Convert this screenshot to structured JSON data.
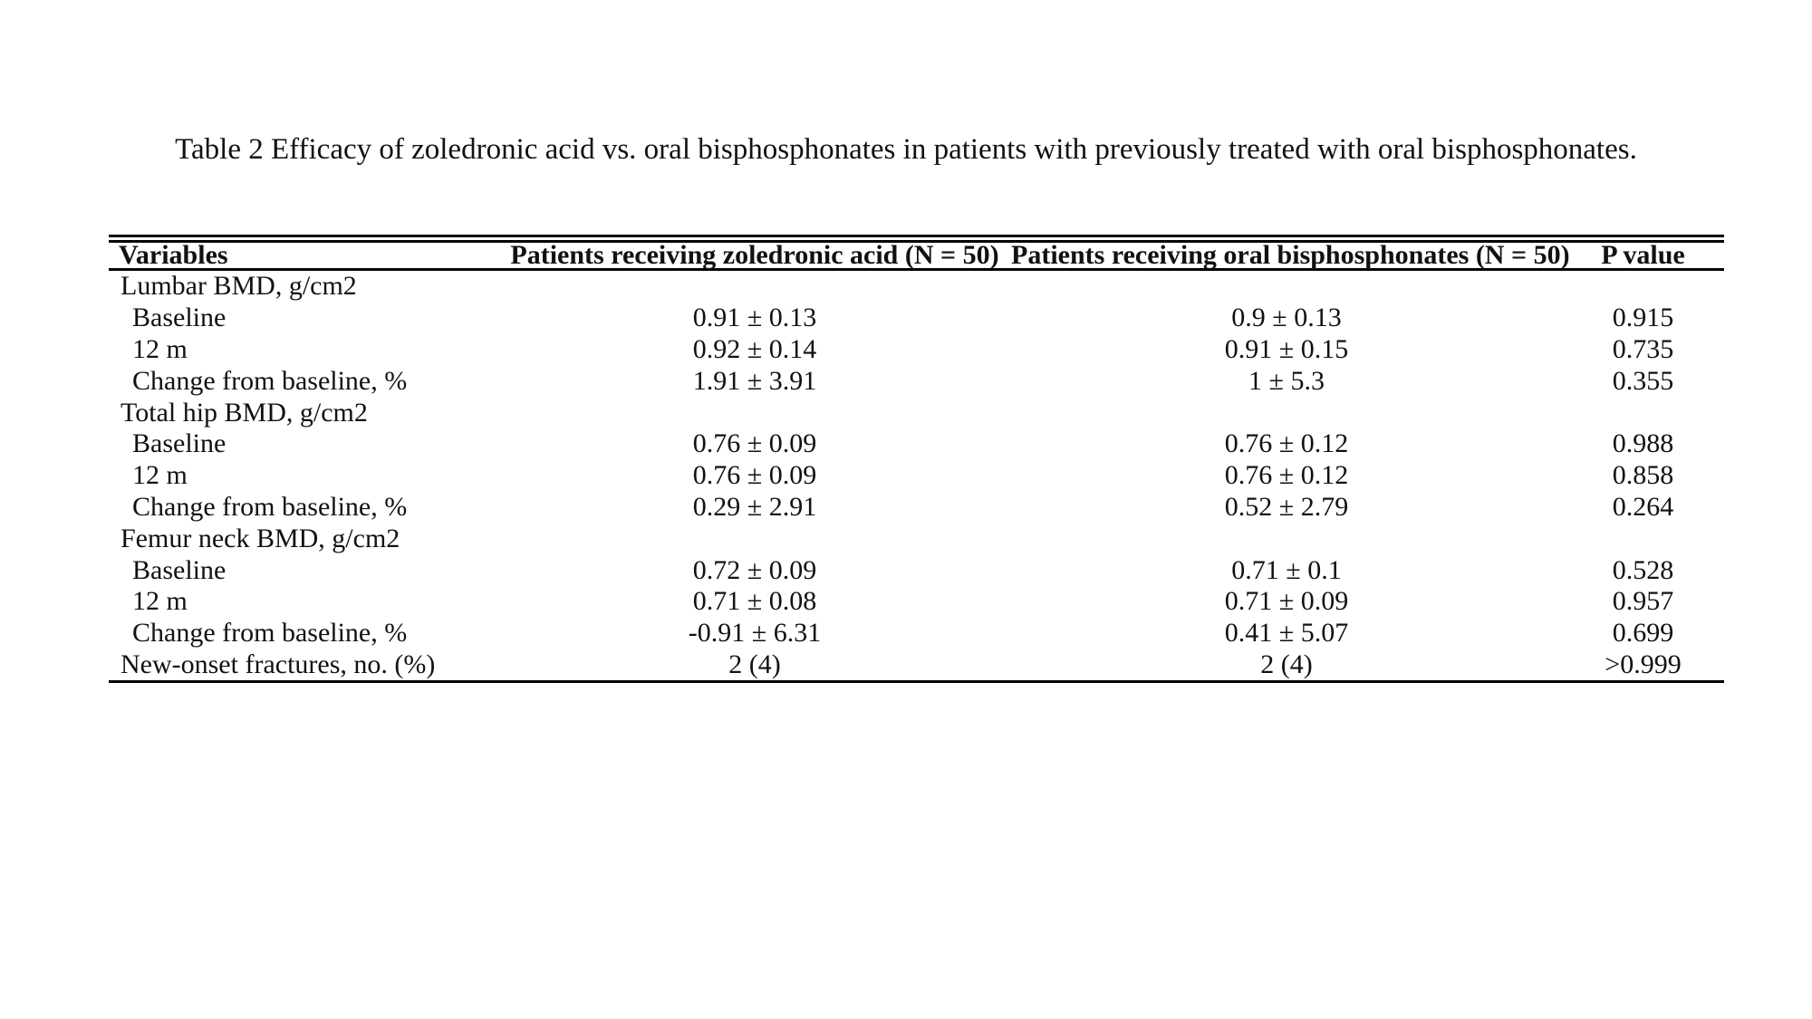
{
  "page": {
    "background": "#ffffff",
    "text_color": "#111111",
    "rule_color": "#000000"
  },
  "title": "Table 2 Efficacy of zoledronic acid vs. oral bisphosphonates in patients with previously treated with oral bisphosphonates.",
  "table": {
    "columns": [
      "Variables",
      "Patients receiving zoledronic acid (N = 50)",
      "Patients receiving oral bisphosphonates (N = 50)",
      "P value"
    ],
    "rows": [
      {
        "label": "Lumbar BMD, g/cm2",
        "indent": 0,
        "zoledronic": "",
        "oral": "",
        "p": ""
      },
      {
        "label": "Baseline",
        "indent": 1,
        "zoledronic": "0.91 ± 0.13",
        "oral": "0.9 ± 0.13",
        "p": "0.915"
      },
      {
        "label": "12 m",
        "indent": 1,
        "zoledronic": "0.92 ± 0.14",
        "oral": "0.91 ± 0.15",
        "p": "0.735"
      },
      {
        "label": "Change from baseline, %",
        "indent": 1,
        "zoledronic": "1.91 ± 3.91",
        "oral": "1 ± 5.3",
        "p": "0.355"
      },
      {
        "label": "Total hip BMD, g/cm2",
        "indent": 0,
        "zoledronic": "",
        "oral": "",
        "p": ""
      },
      {
        "label": "Baseline",
        "indent": 1,
        "zoledronic": "0.76 ± 0.09",
        "oral": "0.76 ± 0.12",
        "p": "0.988"
      },
      {
        "label": "12 m",
        "indent": 1,
        "zoledronic": "0.76 ± 0.09",
        "oral": "0.76 ± 0.12",
        "p": "0.858"
      },
      {
        "label": "Change from baseline, %",
        "indent": 1,
        "zoledronic": "0.29 ± 2.91",
        "oral": "0.52 ± 2.79",
        "p": "0.264"
      },
      {
        "label": "Femur neck BMD, g/cm2",
        "indent": 0,
        "zoledronic": "",
        "oral": "",
        "p": ""
      },
      {
        "label": "Baseline",
        "indent": 1,
        "zoledronic": "0.72 ± 0.09",
        "oral": "0.71 ± 0.1",
        "p": "0.528"
      },
      {
        "label": "12 m",
        "indent": 1,
        "zoledronic": "0.71 ± 0.08",
        "oral": "0.71 ± 0.09",
        "p": "0.957"
      },
      {
        "label": "Change from baseline, %",
        "indent": 1,
        "zoledronic": "-0.91 ± 6.31",
        "oral": "0.41 ± 5.07",
        "p": "0.699"
      },
      {
        "label": "New-onset fractures, no. (%)",
        "indent": 0,
        "zoledronic": "2 (4)",
        "oral": "2 (4)",
        "p": ">0.999"
      }
    ]
  }
}
